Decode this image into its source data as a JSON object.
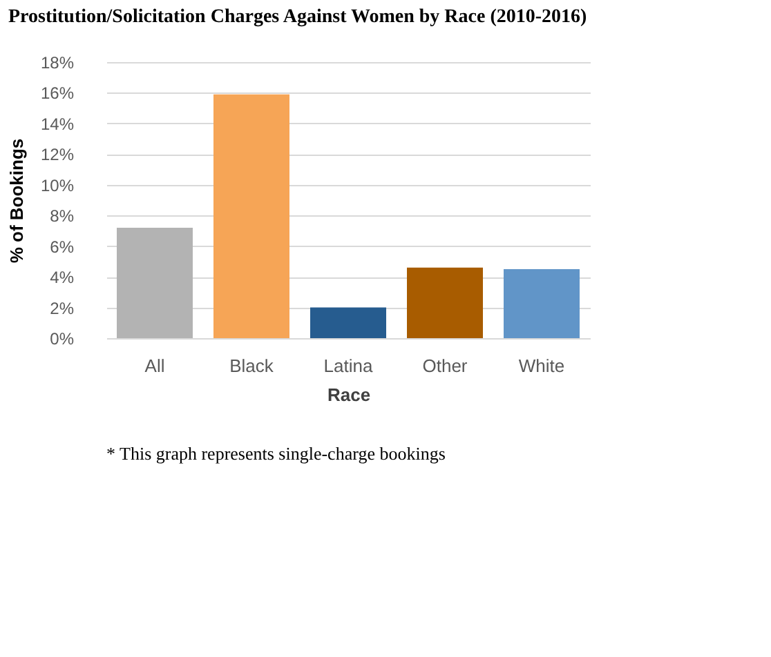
{
  "chart_data": {
    "type": "bar",
    "title": "Prostitution/Solicitation Charges Against Women by Race (2010-2016)",
    "xlabel": "Race",
    "ylabel": "% of Bookings",
    "categories": [
      "All",
      "Black",
      "Latina",
      "Other",
      "White"
    ],
    "values": [
      7.2,
      15.9,
      2.0,
      4.6,
      4.5
    ],
    "colors": [
      "#b3b3b3",
      "#f6a556",
      "#265c8f",
      "#a85c00",
      "#6195c8"
    ],
    "ylim": [
      0,
      18
    ],
    "yticks": [
      {
        "value": 0,
        "label": "0%"
      },
      {
        "value": 2,
        "label": "2%"
      },
      {
        "value": 4,
        "label": "4%"
      },
      {
        "value": 6,
        "label": "6%"
      },
      {
        "value": 8,
        "label": "8%"
      },
      {
        "value": 10,
        "label": "10%"
      },
      {
        "value": 12,
        "label": "12%"
      },
      {
        "value": 14,
        "label": "14%"
      },
      {
        "value": 16,
        "label": "16%"
      },
      {
        "value": 18,
        "label": "18%"
      }
    ],
    "grid": "y",
    "annotations": [
      "* This graph represents single-charge bookings"
    ]
  }
}
